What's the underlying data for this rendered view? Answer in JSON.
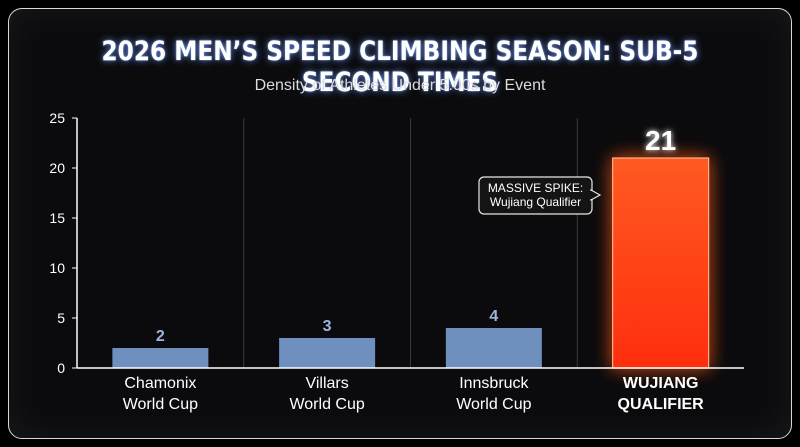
{
  "title": "2026 MEN’S SPEED CLIMBING SEASON: SUB-5 SECOND TIMES",
  "subtitle": "Density of Athletes Under 5.00s by Event",
  "chart_data": {
    "type": "bar",
    "categories": [
      [
        "Chamonix",
        "World Cup"
      ],
      [
        "Villars",
        "World Cup"
      ],
      [
        "Innsbruck",
        "World Cup"
      ],
      [
        "WUJIANG",
        "QUALIFIER"
      ]
    ],
    "values": [
      2,
      3,
      4,
      21
    ],
    "data_labels": [
      "2",
      "3",
      "4",
      "21"
    ],
    "highlight_index": 3,
    "ylim": [
      0,
      25
    ],
    "yticks": [
      0,
      5,
      10,
      15,
      20,
      25
    ],
    "grid": "vertical separators between categories",
    "annotation": {
      "lines": [
        "MASSIVE SPIKE:",
        "Wujiang Qualifier"
      ],
      "target_index": 3
    },
    "colors": {
      "bar": "#6f8fbf",
      "bar_label": "#9fb6dc",
      "highlight": "#ff3b12",
      "highlight_glow": "#ff5a1f",
      "axis": "#ffffff",
      "separator": "#3a3a3a",
      "title_glow": "#6e96ff"
    }
  }
}
